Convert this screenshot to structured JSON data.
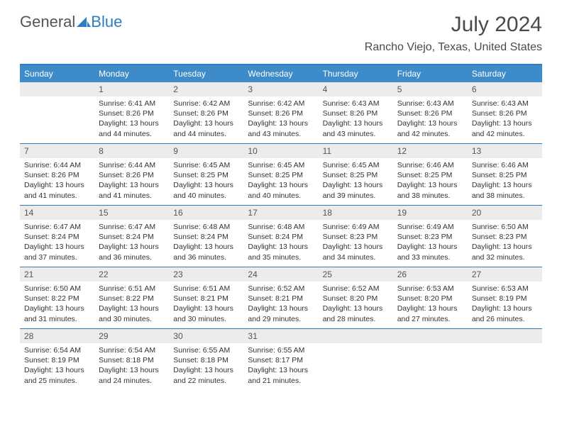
{
  "brand": {
    "part1": "General",
    "part2": "Blue"
  },
  "title": "July 2024",
  "location": "Rancho Viejo, Texas, United States",
  "colors": {
    "header_bg": "#3d8cc9",
    "rule": "#2d7dc5",
    "daynum_bg": "#ececec",
    "text": "#333333",
    "title_text": "#4a4a4a"
  },
  "weekdays": [
    "Sunday",
    "Monday",
    "Tuesday",
    "Wednesday",
    "Thursday",
    "Friday",
    "Saturday"
  ],
  "weeks": [
    [
      null,
      {
        "n": "1",
        "sr": "6:41 AM",
        "ss": "8:26 PM",
        "dl": "13 hours and 44 minutes."
      },
      {
        "n": "2",
        "sr": "6:42 AM",
        "ss": "8:26 PM",
        "dl": "13 hours and 44 minutes."
      },
      {
        "n": "3",
        "sr": "6:42 AM",
        "ss": "8:26 PM",
        "dl": "13 hours and 43 minutes."
      },
      {
        "n": "4",
        "sr": "6:43 AM",
        "ss": "8:26 PM",
        "dl": "13 hours and 43 minutes."
      },
      {
        "n": "5",
        "sr": "6:43 AM",
        "ss": "8:26 PM",
        "dl": "13 hours and 42 minutes."
      },
      {
        "n": "6",
        "sr": "6:43 AM",
        "ss": "8:26 PM",
        "dl": "13 hours and 42 minutes."
      }
    ],
    [
      {
        "n": "7",
        "sr": "6:44 AM",
        "ss": "8:26 PM",
        "dl": "13 hours and 41 minutes."
      },
      {
        "n": "8",
        "sr": "6:44 AM",
        "ss": "8:26 PM",
        "dl": "13 hours and 41 minutes."
      },
      {
        "n": "9",
        "sr": "6:45 AM",
        "ss": "8:25 PM",
        "dl": "13 hours and 40 minutes."
      },
      {
        "n": "10",
        "sr": "6:45 AM",
        "ss": "8:25 PM",
        "dl": "13 hours and 40 minutes."
      },
      {
        "n": "11",
        "sr": "6:45 AM",
        "ss": "8:25 PM",
        "dl": "13 hours and 39 minutes."
      },
      {
        "n": "12",
        "sr": "6:46 AM",
        "ss": "8:25 PM",
        "dl": "13 hours and 38 minutes."
      },
      {
        "n": "13",
        "sr": "6:46 AM",
        "ss": "8:25 PM",
        "dl": "13 hours and 38 minutes."
      }
    ],
    [
      {
        "n": "14",
        "sr": "6:47 AM",
        "ss": "8:24 PM",
        "dl": "13 hours and 37 minutes."
      },
      {
        "n": "15",
        "sr": "6:47 AM",
        "ss": "8:24 PM",
        "dl": "13 hours and 36 minutes."
      },
      {
        "n": "16",
        "sr": "6:48 AM",
        "ss": "8:24 PM",
        "dl": "13 hours and 36 minutes."
      },
      {
        "n": "17",
        "sr": "6:48 AM",
        "ss": "8:24 PM",
        "dl": "13 hours and 35 minutes."
      },
      {
        "n": "18",
        "sr": "6:49 AM",
        "ss": "8:23 PM",
        "dl": "13 hours and 34 minutes."
      },
      {
        "n": "19",
        "sr": "6:49 AM",
        "ss": "8:23 PM",
        "dl": "13 hours and 33 minutes."
      },
      {
        "n": "20",
        "sr": "6:50 AM",
        "ss": "8:23 PM",
        "dl": "13 hours and 32 minutes."
      }
    ],
    [
      {
        "n": "21",
        "sr": "6:50 AM",
        "ss": "8:22 PM",
        "dl": "13 hours and 31 minutes."
      },
      {
        "n": "22",
        "sr": "6:51 AM",
        "ss": "8:22 PM",
        "dl": "13 hours and 30 minutes."
      },
      {
        "n": "23",
        "sr": "6:51 AM",
        "ss": "8:21 PM",
        "dl": "13 hours and 30 minutes."
      },
      {
        "n": "24",
        "sr": "6:52 AM",
        "ss": "8:21 PM",
        "dl": "13 hours and 29 minutes."
      },
      {
        "n": "25",
        "sr": "6:52 AM",
        "ss": "8:20 PM",
        "dl": "13 hours and 28 minutes."
      },
      {
        "n": "26",
        "sr": "6:53 AM",
        "ss": "8:20 PM",
        "dl": "13 hours and 27 minutes."
      },
      {
        "n": "27",
        "sr": "6:53 AM",
        "ss": "8:19 PM",
        "dl": "13 hours and 26 minutes."
      }
    ],
    [
      {
        "n": "28",
        "sr": "6:54 AM",
        "ss": "8:19 PM",
        "dl": "13 hours and 25 minutes."
      },
      {
        "n": "29",
        "sr": "6:54 AM",
        "ss": "8:18 PM",
        "dl": "13 hours and 24 minutes."
      },
      {
        "n": "30",
        "sr": "6:55 AM",
        "ss": "8:18 PM",
        "dl": "13 hours and 22 minutes."
      },
      {
        "n": "31",
        "sr": "6:55 AM",
        "ss": "8:17 PM",
        "dl": "13 hours and 21 minutes."
      },
      null,
      null,
      null
    ]
  ],
  "labels": {
    "sunrise": "Sunrise:",
    "sunset": "Sunset:",
    "daylight": "Daylight:"
  }
}
